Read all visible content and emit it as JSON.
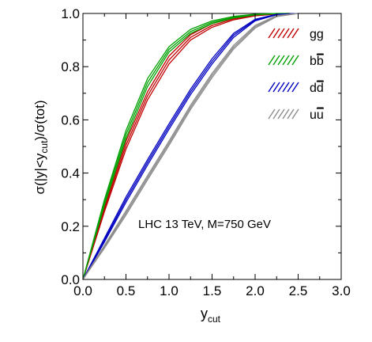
{
  "chart_data": {
    "type": "line",
    "title": "",
    "xlabel": "y",
    "xlabel_sub": "cut",
    "ylabel_parts": [
      "σ(|y|<y",
      "cut",
      ")/σ(tot)"
    ],
    "xlim": [
      0.0,
      3.0
    ],
    "ylim": [
      0.0,
      1.0
    ],
    "xticks": [
      "0.0",
      "0.5",
      "1.0",
      "1.5",
      "2.0",
      "2.5",
      "3.0"
    ],
    "yticks": [
      "0.0",
      "0.2",
      "0.4",
      "0.6",
      "0.8",
      "1.0"
    ],
    "annotation": "LHC 13 TeV, M=750 GeV",
    "legend_position": "top-right",
    "series": [
      {
        "name": "gg",
        "legend_base": "gg",
        "legend_bar": "",
        "color": "#c00000",
        "x": [
          0,
          0.25,
          0.5,
          0.75,
          1.0,
          1.25,
          1.5,
          1.75,
          2.0,
          2.25,
          2.4
        ],
        "bands": [
          [
            0,
            0.275,
            0.52,
            0.705,
            0.84,
            0.92,
            0.962,
            0.984,
            0.995,
            0.999,
            1.0
          ],
          [
            0,
            0.265,
            0.505,
            0.69,
            0.825,
            0.91,
            0.955,
            0.98,
            0.993,
            0.999,
            1.0
          ],
          [
            0,
            0.255,
            0.49,
            0.675,
            0.81,
            0.9,
            0.948,
            0.976,
            0.991,
            0.998,
            1.0
          ]
        ]
      },
      {
        "name": "bb",
        "legend_base": "b",
        "legend_bar": "b",
        "color": "#00a000",
        "x": [
          0,
          0.25,
          0.5,
          0.75,
          1.0,
          1.25,
          1.5,
          1.75,
          2.0,
          2.25,
          2.4
        ],
        "bands": [
          [
            0,
            0.3,
            0.56,
            0.755,
            0.875,
            0.94,
            0.972,
            0.989,
            0.997,
            1.0,
            1.0
          ],
          [
            0,
            0.29,
            0.545,
            0.74,
            0.865,
            0.932,
            0.967,
            0.986,
            0.996,
            1.0,
            1.0
          ],
          [
            0,
            0.28,
            0.53,
            0.725,
            0.855,
            0.925,
            0.962,
            0.983,
            0.995,
            0.999,
            1.0
          ]
        ]
      },
      {
        "name": "dd",
        "legend_base": "d",
        "legend_bar": "d",
        "color": "#0000c0",
        "x": [
          0,
          0.25,
          0.5,
          0.75,
          1.0,
          1.25,
          1.5,
          1.75,
          2.0,
          2.25,
          2.5
        ],
        "bands": [
          [
            0,
            0.155,
            0.31,
            0.45,
            0.585,
            0.715,
            0.83,
            0.925,
            0.978,
            0.997,
            1.0
          ],
          [
            0,
            0.148,
            0.3,
            0.44,
            0.575,
            0.705,
            0.82,
            0.918,
            0.975,
            0.996,
            1.0
          ],
          [
            0,
            0.141,
            0.29,
            0.43,
            0.565,
            0.695,
            0.81,
            0.91,
            0.972,
            0.995,
            1.0
          ]
        ]
      },
      {
        "name": "uu",
        "legend_base": "u",
        "legend_bar": "u",
        "color": "#8c8c8c",
        "x": [
          0,
          0.25,
          0.5,
          0.75,
          1.0,
          1.25,
          1.5,
          1.75,
          2.0,
          2.25,
          2.5
        ],
        "bands": [
          [
            0,
            0.128,
            0.258,
            0.39,
            0.52,
            0.655,
            0.775,
            0.88,
            0.955,
            0.992,
            1.0
          ],
          [
            0,
            0.123,
            0.25,
            0.382,
            0.512,
            0.647,
            0.767,
            0.873,
            0.95,
            0.99,
            1.0
          ],
          [
            0,
            0.118,
            0.242,
            0.374,
            0.504,
            0.639,
            0.759,
            0.866,
            0.945,
            0.988,
            1.0
          ]
        ]
      }
    ]
  }
}
